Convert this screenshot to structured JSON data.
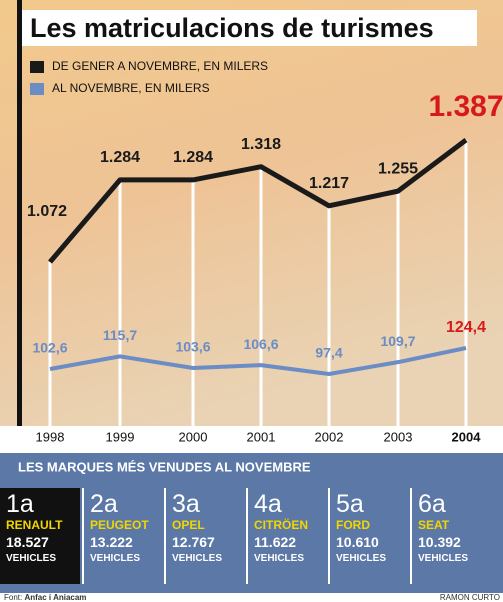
{
  "chart_data": {
    "type": "line",
    "title": "Les matriculacions de turismes",
    "categories": [
      "1998",
      "1999",
      "2000",
      "2001",
      "2002",
      "2003",
      "2004"
    ],
    "highlight_color": "#d7191c",
    "series": [
      {
        "name": "DE GENER A NOVEMBRE, EN MILERS",
        "color": "#1a1a1a",
        "values": [
          1072,
          1284,
          1284,
          1318,
          1217,
          1255,
          1387
        ],
        "value_labels": [
          "1.072",
          "1.284",
          "1.284",
          "1.318",
          "1.217",
          "1.255",
          "1.387"
        ]
      },
      {
        "name": "AL NOVEMBRE, EN MILERS",
        "color": "#6b8cc4",
        "axis": "y2",
        "values": [
          102.6,
          115.7,
          103.6,
          106.6,
          97.4,
          109.7,
          124.4
        ],
        "value_labels": [
          "102,6",
          "115,7",
          "103,6",
          "106,6",
          "97,4",
          "109,7",
          "124,4"
        ]
      }
    ]
  },
  "ranking": {
    "title": "LES MARQUES MÉS VENUDES AL NOVEMBRE",
    "items": [
      {
        "rank": "1a",
        "brand": "RENAULT",
        "value": "18.527",
        "unit": "VEHICLES"
      },
      {
        "rank": "2a",
        "brand": "PEUGEOT",
        "value": "13.222",
        "unit": "VEHICLES"
      },
      {
        "rank": "3a",
        "brand": "OPEL",
        "value": "12.767",
        "unit": "VEHICLES"
      },
      {
        "rank": "4a",
        "brand": "CITRÖEN",
        "value": "11.622",
        "unit": "VEHICLES"
      },
      {
        "rank": "5a",
        "brand": "FORD",
        "value": "10.610",
        "unit": "VEHICLES"
      },
      {
        "rank": "6a",
        "brand": "SEAT",
        "value": "10.392",
        "unit": "VEHICLES"
      }
    ]
  },
  "footer": {
    "source_label": "Font:",
    "source": "Anfac i Aniacam",
    "credit": "RAMON CURTO"
  }
}
